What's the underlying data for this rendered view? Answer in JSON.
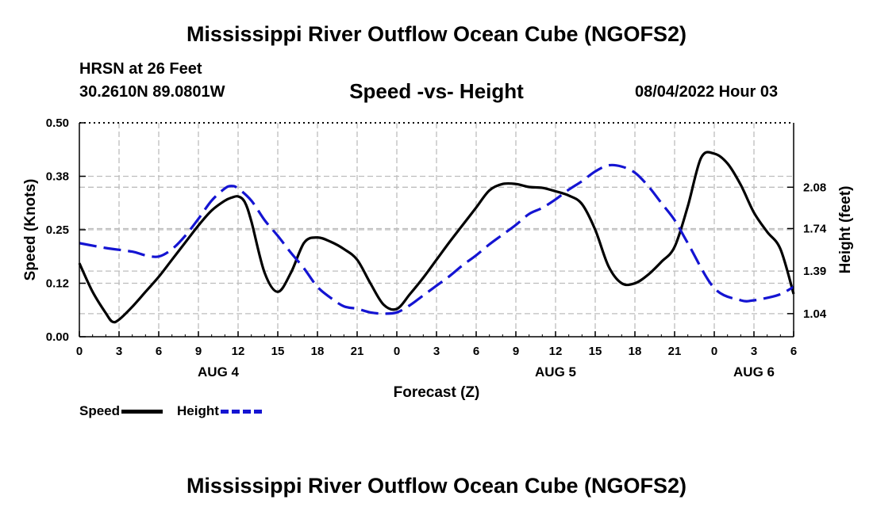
{
  "header": {
    "title": "Mississippi River Outflow Ocean Cube (NGOFS2)",
    "station": "HRSN at 26 Feet",
    "coords": "30.2610N  89.0801W",
    "subtitle": "Speed -vs- Height",
    "datetime": "08/04/2022 Hour 03"
  },
  "footer": {
    "title": "Mississippi River Outflow Ocean Cube (NGOFS2)"
  },
  "legend": {
    "speed_label": "Speed",
    "height_label": "Height"
  },
  "chart_data": {
    "type": "line",
    "title": "Speed -vs- Height",
    "xlabel": "Forecast (Z)",
    "ylabel_left": "Speed (Knots)",
    "ylabel_right": "Height (feet)",
    "x_range_hours": [
      0,
      54
    ],
    "x_tick_hours": [
      0,
      3,
      6,
      9,
      12,
      15,
      18,
      21,
      24,
      27,
      30,
      33,
      36,
      39,
      42,
      45,
      48,
      51,
      54
    ],
    "x_tick_labels": [
      "0",
      "3",
      "6",
      "9",
      "12",
      "15",
      "18",
      "21",
      "0",
      "3",
      "6",
      "9",
      "12",
      "15",
      "18",
      "21",
      "0",
      "3",
      "6"
    ],
    "day_labels": [
      {
        "label": "AUG 4",
        "hour": 10.5
      },
      {
        "label": "AUG 5",
        "hour": 36
      },
      {
        "label": "AUG 6",
        "hour": 51
      }
    ],
    "y_left_range": [
      0,
      0.5
    ],
    "y_left_ticks": [
      0,
      0.125,
      0.25,
      0.375,
      0.5
    ],
    "y_left_tick_labels": [
      "0.00",
      "0.12",
      "0.25",
      "0.38",
      "0.50"
    ],
    "y_right_range": [
      0.85,
      2.61
    ],
    "y_right_ticks": [
      1.04,
      1.39,
      1.74,
      2.08
    ],
    "y_right_tick_labels": [
      "1.04",
      "1.39",
      "1.74",
      "2.08"
    ],
    "grid": true,
    "series": [
      {
        "name": "Speed",
        "axis": "left",
        "color": "#000000",
        "style": "solid",
        "x": [
          0,
          1,
          2,
          2.5,
          3,
          4,
          5,
          6,
          7,
          8,
          9,
          10,
          11,
          11.5,
          12,
          12.5,
          13,
          14,
          15,
          16,
          17,
          18,
          19,
          20,
          21,
          22,
          23,
          24,
          25,
          26,
          27,
          28,
          29,
          30,
          31,
          32,
          33,
          34,
          35,
          36,
          37,
          38,
          39,
          40,
          41,
          42,
          43,
          44,
          45,
          46,
          47,
          48,
          49,
          50,
          51,
          52,
          53,
          54
        ],
        "values": [
          0.172,
          0.105,
          0.055,
          0.035,
          0.04,
          0.07,
          0.105,
          0.14,
          0.18,
          0.22,
          0.26,
          0.295,
          0.318,
          0.325,
          0.328,
          0.315,
          0.27,
          0.15,
          0.105,
          0.15,
          0.22,
          0.232,
          0.222,
          0.205,
          0.18,
          0.125,
          0.075,
          0.065,
          0.1,
          0.138,
          0.18,
          0.222,
          0.262,
          0.302,
          0.342,
          0.357,
          0.357,
          0.35,
          0.348,
          0.34,
          0.33,
          0.31,
          0.25,
          0.165,
          0.125,
          0.125,
          0.145,
          0.175,
          0.21,
          0.305,
          0.418,
          0.428,
          0.405,
          0.355,
          0.29,
          0.245,
          0.205,
          0.1
        ]
      },
      {
        "name": "Height",
        "axis": "right",
        "color": "#1414d2",
        "style": "dashed",
        "x": [
          0,
          2,
          4,
          5,
          6,
          7,
          8,
          9,
          10,
          11,
          11.5,
          12,
          13,
          14,
          15,
          16,
          17,
          18,
          19,
          20,
          21,
          22,
          23,
          24,
          25,
          26,
          27,
          28,
          29,
          30,
          31,
          32,
          33,
          34,
          35,
          36,
          37,
          38,
          39,
          40,
          41,
          42,
          43,
          44,
          45,
          46,
          48,
          50,
          51,
          52,
          53,
          54
        ],
        "values": [
          1.62,
          1.58,
          1.55,
          1.52,
          1.51,
          1.57,
          1.68,
          1.82,
          1.97,
          2.07,
          2.09,
          2.07,
          1.97,
          1.81,
          1.68,
          1.54,
          1.41,
          1.26,
          1.17,
          1.1,
          1.08,
          1.05,
          1.04,
          1.05,
          1.11,
          1.19,
          1.27,
          1.35,
          1.44,
          1.52,
          1.61,
          1.69,
          1.77,
          1.86,
          1.91,
          1.98,
          2.06,
          2.13,
          2.21,
          2.26,
          2.25,
          2.2,
          2.09,
          1.95,
          1.81,
          1.62,
          1.25,
          1.15,
          1.15,
          1.17,
          1.2,
          1.26
        ]
      }
    ]
  }
}
